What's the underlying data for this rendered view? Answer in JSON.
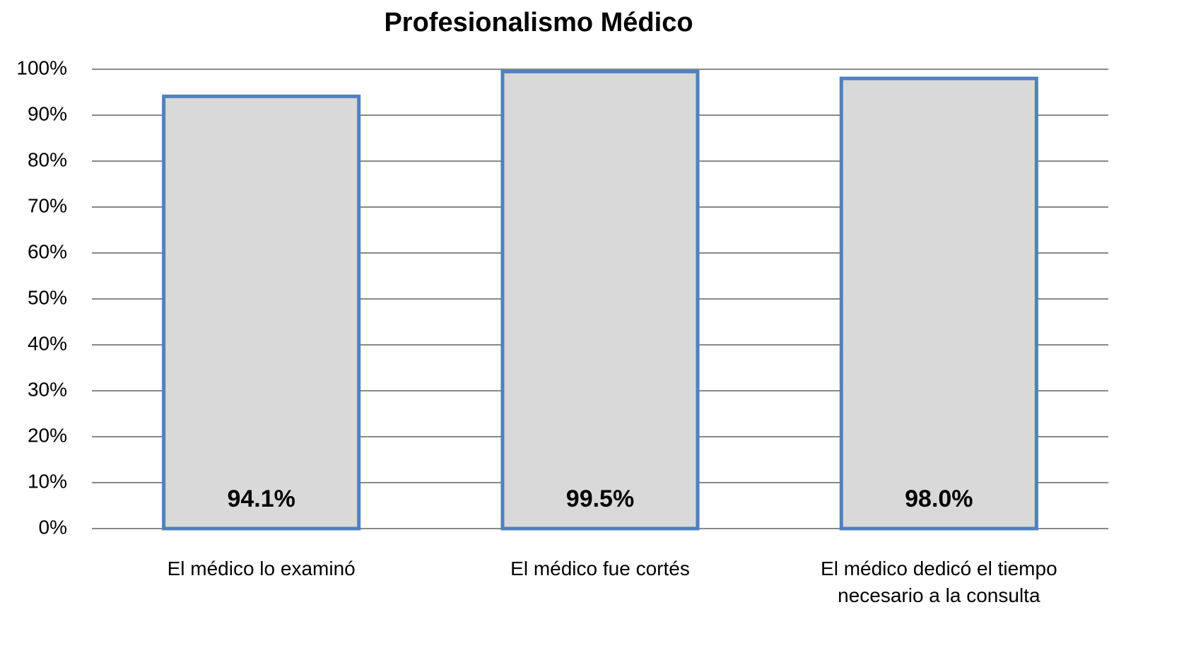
{
  "chart_data": {
    "type": "bar",
    "title": "Profesionalismo Médico",
    "categories": [
      "El médico lo examinó",
      "El médico fue cortés",
      "El médico dedicó el tiempo necesario a la consulta"
    ],
    "values": [
      94.1,
      99.5,
      98.0
    ],
    "value_labels": [
      "94.1%",
      "99.5%",
      "98.0%"
    ],
    "color": "#d9d9d9",
    "edge_color": "#4f81bd",
    "ylim": [
      0,
      100
    ],
    "yticks": [
      {
        "value": 0,
        "label": "0%"
      },
      {
        "value": 10,
        "label": "10%"
      },
      {
        "value": 20,
        "label": "20%"
      },
      {
        "value": 30,
        "label": "30%"
      },
      {
        "value": 40,
        "label": "40%"
      },
      {
        "value": 50,
        "label": "50%"
      },
      {
        "value": 60,
        "label": "60%"
      },
      {
        "value": 70,
        "label": "70%"
      },
      {
        "value": 80,
        "label": "80%"
      },
      {
        "value": 90,
        "label": "90%"
      },
      {
        "value": 100,
        "label": "100%"
      }
    ],
    "grid": true
  }
}
